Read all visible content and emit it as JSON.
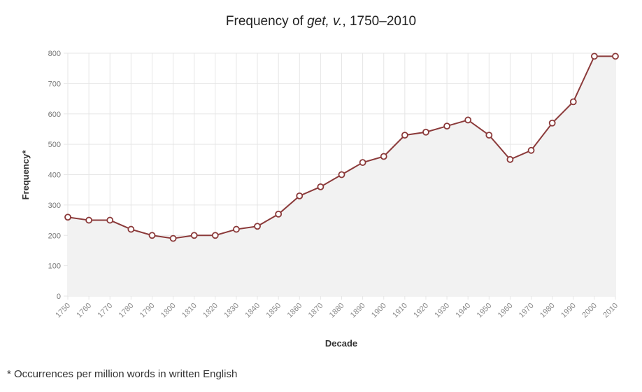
{
  "title": {
    "prefix": "Frequency of ",
    "word": "get, v.",
    "suffix": ", 1750–2010"
  },
  "footnote": "* Occurrences per million words in written English",
  "colors": {
    "line": "#8b3a3a",
    "area": "#f2f2f2",
    "grid": "#e6e6e6"
  },
  "chart_data": {
    "type": "line",
    "title": "Frequency of get, v., 1750–2010",
    "xlabel": "Decade",
    "ylabel": "Frequency*",
    "ylim": [
      0,
      800
    ],
    "yticks": [
      0,
      100,
      200,
      300,
      400,
      500,
      600,
      700,
      800
    ],
    "grid": true,
    "area_fill": true,
    "x": [
      1750,
      1760,
      1770,
      1780,
      1790,
      1800,
      1810,
      1820,
      1830,
      1840,
      1850,
      1860,
      1870,
      1880,
      1890,
      1900,
      1910,
      1920,
      1930,
      1940,
      1950,
      1960,
      1970,
      1980,
      1990,
      2000,
      2010
    ],
    "y": [
      260,
      250,
      250,
      220,
      200,
      190,
      200,
      200,
      220,
      230,
      270,
      330,
      360,
      400,
      440,
      460,
      530,
      540,
      560,
      580,
      530,
      450,
      480,
      570,
      640,
      790,
      790
    ]
  }
}
